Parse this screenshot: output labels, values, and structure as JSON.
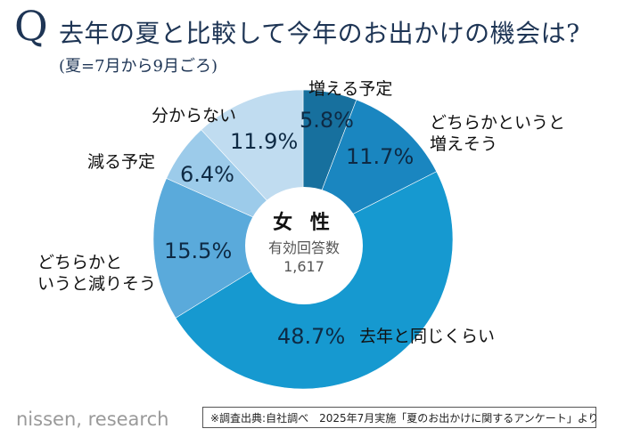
{
  "header": {
    "q_mark": "Q",
    "title": "去年の夏と比較して今年のお出かけの機会は?",
    "subtitle": "(夏=7月から9月ごろ)"
  },
  "center": {
    "title": "女 性",
    "sample_label": "有効回答数",
    "sample_count": "1,617"
  },
  "footer": {
    "logo": "nissen, research",
    "source": "※調査出典:自社調べ　2025年7月実施「夏のお出かけに関するアンケート」より"
  },
  "chart_data": {
    "type": "pie",
    "variant": "donut",
    "title": "去年の夏と比較して今年のお出かけの機会は?",
    "start": "12 o'clock, clockwise",
    "slices": [
      {
        "label": "増える予定",
        "value": 5.8,
        "value_label": "5.8%",
        "color": "#17709e"
      },
      {
        "label": "どちらかというと増えそう",
        "value": 11.7,
        "value_label": "11.7%",
        "color": "#1a86c0"
      },
      {
        "label": "去年と同じくらい",
        "value": 48.7,
        "value_label": "48.7%",
        "color": "#1699d0"
      },
      {
        "label": "どちらかというと減りそう",
        "value": 15.5,
        "value_label": "15.5%",
        "color": "#5aaadb"
      },
      {
        "label": "減る予定",
        "value": 6.4,
        "value_label": "6.4%",
        "color": "#9ccbea"
      },
      {
        "label": "分からない",
        "value": 11.9,
        "value_label": "11.9%",
        "color": "#c0dcf0"
      }
    ],
    "label_lines": {
      "increase_somewhat": [
        "どちらかというと",
        "増えそう"
      ],
      "decrease_somewhat": [
        "どちらかと",
        "いうと減りそう"
      ]
    }
  }
}
